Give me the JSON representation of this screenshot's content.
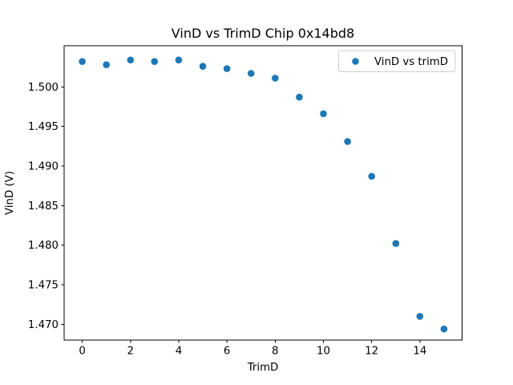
{
  "chart_data": {
    "type": "scatter",
    "title": "VinD vs TrimD Chip 0x14bd8",
    "xlabel": "TrimD",
    "ylabel": "VinD (V)",
    "series": [
      {
        "name": "VinD vs trimD",
        "color": "#1f77b4",
        "x": [
          0,
          1,
          2,
          3,
          4,
          5,
          6,
          7,
          8,
          9,
          10,
          11,
          12,
          13,
          14,
          15
        ],
        "y": [
          1.5032,
          1.5028,
          1.5034,
          1.5032,
          1.5034,
          1.5026,
          1.5023,
          1.5017,
          1.5011,
          1.4987,
          1.4966,
          1.4931,
          1.4887,
          1.4802,
          1.471,
          1.4694
        ]
      }
    ],
    "xlim": [
      -0.75,
      15.75
    ],
    "ylim": [
      1.468,
      1.5052
    ],
    "xticks": [
      0,
      2,
      4,
      6,
      8,
      10,
      12,
      14
    ],
    "xticklabels": [
      "0",
      "2",
      "4",
      "6",
      "8",
      "10",
      "12",
      "14"
    ],
    "yticks": [
      1.47,
      1.475,
      1.48,
      1.485,
      1.49,
      1.495,
      1.5
    ],
    "yticklabels": [
      "1.470",
      "1.475",
      "1.480",
      "1.485",
      "1.490",
      "1.495",
      "1.500"
    ],
    "grid": false,
    "legend_position": "upper right",
    "colors": {
      "marker": "#1f77b4",
      "spine": "#000000",
      "legend_border": "#cccccc",
      "background": "#ffffff"
    }
  }
}
